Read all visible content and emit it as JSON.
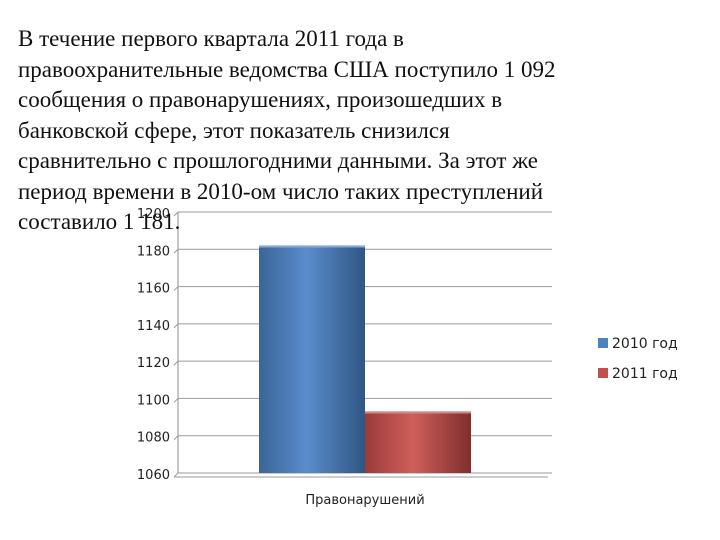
{
  "paragraph": {
    "lines": [
      "В течение первого квартала 2011 года в",
      "правоохранительные ведомства США поступило 1 092",
      "сообщения о правонарушениях, произошедших в",
      "банковской сфере, этот показатель снизился",
      "сравнительно с прошлогодними данными. За этот же",
      "период времени в 2010-ом число таких преступлений",
      "составило 1 181."
    ]
  },
  "chart_data": {
    "type": "bar",
    "categories": [
      "Правонарушений"
    ],
    "series": [
      {
        "name": "2010 год",
        "values": [
          1181
        ],
        "color": "#4f81bd"
      },
      {
        "name": "2011 год",
        "values": [
          1092
        ],
        "color": "#c0504d"
      }
    ],
    "ylim": [
      1060,
      1200
    ],
    "yticks": [
      1060,
      1080,
      1100,
      1120,
      1140,
      1160,
      1180,
      1200
    ],
    "grid": true,
    "legend": "right"
  }
}
